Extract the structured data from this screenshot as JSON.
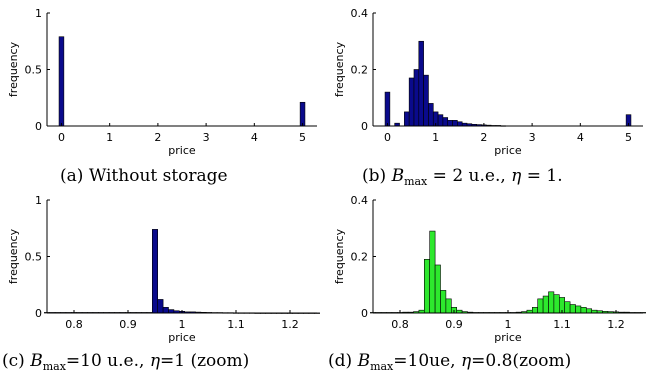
{
  "chart_data": [
    {
      "type": "bar",
      "caption": {
        "prefix": "(a) ",
        "text": "Without storage"
      },
      "xlabel": "price",
      "ylabel": "frequency",
      "xlim": [
        -0.3,
        5.3
      ],
      "ylim": [
        0,
        1
      ],
      "xticks": [
        0,
        1,
        2,
        3,
        4,
        5
      ],
      "xtick_labels": [
        "0",
        "1",
        "2",
        "3",
        "4",
        "5"
      ],
      "yticks": [
        0,
        0.5,
        1
      ],
      "ytick_labels": [
        "0",
        "0.5",
        "1"
      ],
      "bar_width": 0.1,
      "bar_color": "#0a0a8c",
      "x": [
        0,
        5
      ],
      "values": [
        0.79,
        0.21
      ]
    },
    {
      "type": "bar",
      "caption": {
        "prefix": "(b) ",
        "B": "B",
        "sub": "max",
        "mid": " = 2 u.e., ",
        "eta": "η",
        "suffix": " = 1."
      },
      "xlabel": "price",
      "ylabel": "frequency",
      "xlim": [
        -0.3,
        5.3
      ],
      "ylim": [
        0,
        0.4
      ],
      "xticks": [
        0,
        1,
        2,
        3,
        4,
        5
      ],
      "xtick_labels": [
        "0",
        "1",
        "2",
        "3",
        "4",
        "5"
      ],
      "yticks": [
        0,
        0.2,
        0.4
      ],
      "ytick_labels": [
        "0",
        "0.2",
        "0.4"
      ],
      "bar_width": 0.1,
      "bar_color": "#0a0a8c",
      "x": [
        0,
        0.2,
        0.4,
        0.5,
        0.6,
        0.7,
        0.8,
        0.9,
        1.0,
        1.1,
        1.2,
        1.3,
        1.4,
        1.5,
        1.6,
        1.7,
        1.8,
        1.9,
        2.0,
        2.1,
        2.2,
        2.3,
        2.4,
        5
      ],
      "values": [
        0.12,
        0.01,
        0.05,
        0.17,
        0.2,
        0.3,
        0.18,
        0.08,
        0.05,
        0.04,
        0.03,
        0.02,
        0.02,
        0.015,
        0.01,
        0.008,
        0.006,
        0.005,
        0.004,
        0.003,
        0.002,
        0.002,
        0.001,
        0.04
      ]
    },
    {
      "type": "bar",
      "caption": {
        "prefix": "(c) ",
        "B": "B",
        "sub": "max",
        "mid": "=10 u.e., ",
        "eta": "η",
        "suffix": "=1 (zoom)"
      },
      "xlabel": "price",
      "ylabel": "frequency",
      "xlim": [
        0.75,
        1.25
      ],
      "ylim": [
        0,
        1
      ],
      "xticks": [
        0.8,
        0.9,
        1,
        1.1,
        1.2
      ],
      "xtick_labels": [
        "0.8",
        "0.9",
        "1",
        "1.1",
        "1.2"
      ],
      "yticks": [
        0,
        0.5,
        1
      ],
      "ytick_labels": [
        "0",
        "0.5",
        "1"
      ],
      "bar_width": 0.01,
      "bar_color": "#0a0a8c",
      "x": [
        0.75,
        0.76,
        0.77,
        0.78,
        0.79,
        0.8,
        0.81,
        0.82,
        0.83,
        0.84,
        0.85,
        0.86,
        0.87,
        0.88,
        0.89,
        0.9,
        0.91,
        0.92,
        0.93,
        0.94,
        0.95,
        0.96,
        0.97,
        0.98,
        0.99,
        1.0,
        1.01,
        1.02,
        1.03,
        1.04,
        1.05,
        1.06,
        1.07,
        1.08,
        1.09,
        1.1,
        1.11,
        1.12,
        1.13,
        1.14,
        1.15,
        1.16,
        1.17,
        1.18,
        1.19,
        1.2,
        1.21,
        1.22,
        1.23,
        1.24,
        1.25
      ],
      "values": [
        0.005,
        0.005,
        0.005,
        0.005,
        0.005,
        0.005,
        0.005,
        0.005,
        0.005,
        0.005,
        0.005,
        0.005,
        0.005,
        0.005,
        0.005,
        0.005,
        0.005,
        0.005,
        0.005,
        0.005,
        0.74,
        0.12,
        0.05,
        0.03,
        0.02,
        0.015,
        0.01,
        0.01,
        0.008,
        0.006,
        0.005,
        0.004,
        0.004,
        0.003,
        0.003,
        0.002,
        0.002,
        0.002,
        0.002,
        0.001,
        0.001,
        0.001,
        0.001,
        0.001,
        0.001,
        0.001,
        0.001,
        0.001,
        0.001,
        0.001,
        0.001
      ]
    },
    {
      "type": "bar",
      "caption": {
        "prefix": "(d) ",
        "B": "B",
        "sub": "max",
        "mid": "=10ue, ",
        "eta": "η",
        "suffix": "=0.8(zoom)"
      },
      "xlabel": "price",
      "ylabel": "frequency",
      "xlim": [
        0.75,
        1.25
      ],
      "ylim": [
        0,
        0.4
      ],
      "xticks": [
        0.8,
        0.9,
        1,
        1.1,
        1.2
      ],
      "xtick_labels": [
        "0.8",
        "0.9",
        "1",
        "1.1",
        "1.2"
      ],
      "yticks": [
        0,
        0.2,
        0.4
      ],
      "ytick_labels": [
        "0",
        "0.2",
        "0.4"
      ],
      "bar_width": 0.01,
      "bar_color": "#2de82d",
      "x": [
        0.75,
        0.76,
        0.77,
        0.78,
        0.79,
        0.8,
        0.81,
        0.82,
        0.83,
        0.84,
        0.85,
        0.86,
        0.87,
        0.88,
        0.89,
        0.9,
        0.91,
        0.92,
        0.93,
        0.94,
        0.95,
        0.96,
        0.97,
        0.98,
        0.99,
        1.0,
        1.01,
        1.02,
        1.03,
        1.04,
        1.05,
        1.06,
        1.07,
        1.08,
        1.09,
        1.1,
        1.11,
        1.12,
        1.13,
        1.14,
        1.15,
        1.16,
        1.17,
        1.18,
        1.19,
        1.2,
        1.21,
        1.22,
        1.23,
        1.24,
        1.25
      ],
      "values": [
        0.002,
        0.002,
        0.002,
        0.002,
        0.002,
        0.002,
        0.003,
        0.003,
        0.005,
        0.01,
        0.19,
        0.29,
        0.17,
        0.08,
        0.05,
        0.02,
        0.01,
        0.005,
        0.003,
        0.002,
        0.002,
        0.002,
        0.002,
        0.002,
        0.002,
        0.002,
        0.002,
        0.003,
        0.005,
        0.01,
        0.02,
        0.05,
        0.06,
        0.075,
        0.065,
        0.055,
        0.04,
        0.03,
        0.025,
        0.02,
        0.015,
        0.01,
        0.008,
        0.006,
        0.005,
        0.004,
        0.003,
        0.003,
        0.002,
        0.002,
        0.002
      ]
    }
  ]
}
